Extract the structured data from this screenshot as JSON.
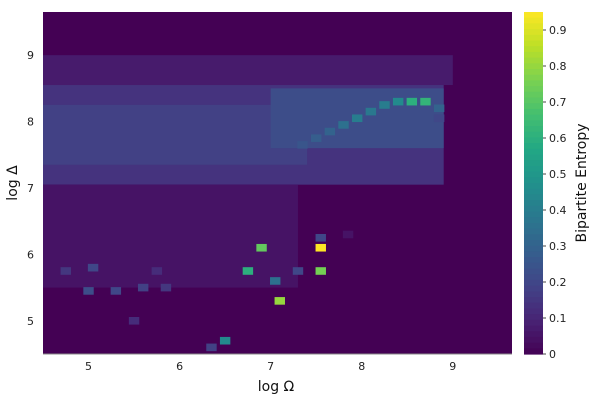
{
  "chart_data": {
    "type": "heatmap",
    "xlabel": "log Ω",
    "ylabel": "log Δ",
    "colorbar_label": "Bipartite Entropy",
    "colormap": "viridis",
    "xlim": [
      4.5,
      9.65
    ],
    "ylim": [
      4.5,
      9.65
    ],
    "zlim": [
      0,
      0.95
    ],
    "x_ticks": [
      5,
      6,
      7,
      8,
      9
    ],
    "y_ticks": [
      5,
      6,
      7,
      8,
      9
    ],
    "z_ticks": [
      0,
      0.1,
      0.2,
      0.3,
      0.4,
      0.5,
      0.6,
      0.7,
      0.8,
      0.9
    ],
    "grid": false,
    "background_value": 0.0,
    "regions": [
      {
        "x": [
          4.5,
          8.9
        ],
        "y": [
          7.05,
          8.6
        ],
        "value": 0.14,
        "note": "broad purple band"
      },
      {
        "x": [
          4.5,
          7.4
        ],
        "y": [
          7.35,
          8.25
        ],
        "value": 0.18
      },
      {
        "x": [
          7.0,
          8.9
        ],
        "y": [
          7.6,
          8.5
        ],
        "value": 0.22
      },
      {
        "x": [
          4.5,
          9.0
        ],
        "y": [
          8.55,
          9.0
        ],
        "value": 0.07
      },
      {
        "x": [
          4.5,
          7.3
        ],
        "y": [
          5.5,
          7.05
        ],
        "value": 0.05
      }
    ],
    "cells": [
      {
        "x": 8.55,
        "y": 8.3,
        "v": 0.6
      },
      {
        "x": 8.7,
        "y": 8.3,
        "v": 0.62
      },
      {
        "x": 8.4,
        "y": 8.3,
        "v": 0.45
      },
      {
        "x": 8.25,
        "y": 8.25,
        "v": 0.4
      },
      {
        "x": 8.1,
        "y": 8.15,
        "v": 0.38
      },
      {
        "x": 7.95,
        "y": 8.05,
        "v": 0.4
      },
      {
        "x": 7.8,
        "y": 7.95,
        "v": 0.35
      },
      {
        "x": 7.65,
        "y": 7.85,
        "v": 0.3
      },
      {
        "x": 7.5,
        "y": 7.75,
        "v": 0.28
      },
      {
        "x": 7.35,
        "y": 7.65,
        "v": 0.25
      },
      {
        "x": 8.85,
        "y": 8.2,
        "v": 0.3
      },
      {
        "x": 8.85,
        "y": 8.05,
        "v": 0.2
      },
      {
        "x": 5.0,
        "y": 5.45,
        "v": 0.22
      },
      {
        "x": 5.3,
        "y": 5.45,
        "v": 0.2
      },
      {
        "x": 5.6,
        "y": 5.5,
        "v": 0.18
      },
      {
        "x": 5.85,
        "y": 5.5,
        "v": 0.15
      },
      {
        "x": 6.9,
        "y": 6.1,
        "v": 0.72
      },
      {
        "x": 7.55,
        "y": 6.1,
        "v": 0.95
      },
      {
        "x": 7.55,
        "y": 6.25,
        "v": 0.2
      },
      {
        "x": 6.75,
        "y": 5.75,
        "v": 0.6
      },
      {
        "x": 7.05,
        "y": 5.6,
        "v": 0.35
      },
      {
        "x": 7.55,
        "y": 5.75,
        "v": 0.75
      },
      {
        "x": 7.1,
        "y": 5.3,
        "v": 0.8
      },
      {
        "x": 7.3,
        "y": 5.75,
        "v": 0.2
      },
      {
        "x": 6.5,
        "y": 4.7,
        "v": 0.45
      },
      {
        "x": 6.35,
        "y": 4.6,
        "v": 0.18
      },
      {
        "x": 5.5,
        "y": 5.0,
        "v": 0.12
      },
      {
        "x": 5.75,
        "y": 5.75,
        "v": 0.12
      },
      {
        "x": 5.05,
        "y": 5.8,
        "v": 0.2
      },
      {
        "x": 4.75,
        "y": 5.75,
        "v": 0.15
      },
      {
        "x": 7.85,
        "y": 6.3,
        "v": 0.05
      }
    ]
  }
}
